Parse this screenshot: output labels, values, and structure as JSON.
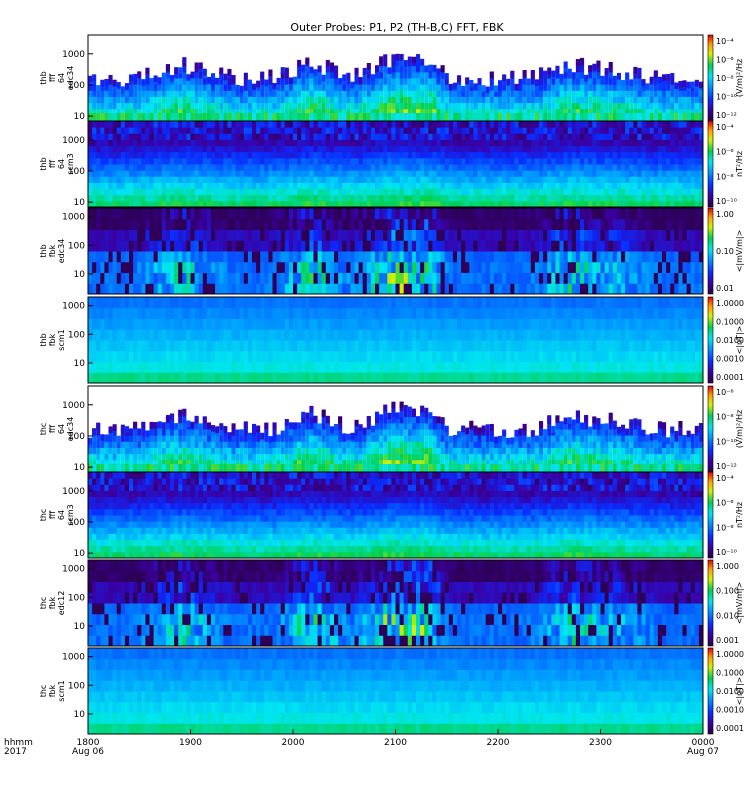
{
  "chart_data": {
    "type": "heatmap",
    "title": "Outer Probes: P1, P2 (TH-B,C) FFT, FBK",
    "x_label_rows": [
      "hhmm",
      "2017"
    ],
    "x_ticks": [
      {
        "top": "1800",
        "bottom": "Aug 06"
      },
      {
        "top": "1900",
        "bottom": ""
      },
      {
        "top": "2000",
        "bottom": ""
      },
      {
        "top": "2100",
        "bottom": ""
      },
      {
        "top": "2200",
        "bottom": ""
      },
      {
        "top": "2300",
        "bottom": ""
      },
      {
        "top": "0000",
        "bottom": "Aug 07"
      }
    ],
    "x_range_hours": [
      18,
      24
    ],
    "y_scale": "log",
    "panels": [
      {
        "label": [
          "thb",
          "fff",
          "64",
          "edc34"
        ],
        "y_ticks": [
          "1000",
          "100",
          "10"
        ],
        "y_range": [
          7,
          4000
        ],
        "cbar_label": "(V/m)²/Hz",
        "cbar_ticks": [
          "10⁻⁴",
          "10⁻⁶",
          "10⁻⁸",
          "10⁻¹⁰",
          "10⁻¹²"
        ],
        "style": "fff_e"
      },
      {
        "label": [
          "thb",
          "fff",
          "64",
          "scm3"
        ],
        "y_ticks": [
          "1000",
          "100",
          "10"
        ],
        "y_range": [
          7,
          4000
        ],
        "cbar_label": "nT²/Hz",
        "cbar_ticks": [
          "10⁻⁴",
          "10⁻⁶",
          "10⁻⁸",
          "10⁻¹⁰"
        ],
        "style": "fff_b"
      },
      {
        "label": [
          "thb",
          "fbk",
          "edc34"
        ],
        "y_ticks": [
          "1000",
          "100",
          "10"
        ],
        "y_range": [
          2,
          2000
        ],
        "cbar_label": "<|mV/m|>",
        "cbar_ticks": [
          "1.00",
          "0.10",
          "0.01"
        ],
        "style": "fbk_e"
      },
      {
        "label": [
          "thb",
          "fbk",
          "scm1"
        ],
        "y_ticks": [
          "1000",
          "100",
          "10"
        ],
        "y_range": [
          2,
          2000
        ],
        "cbar_label": "<|nT|>",
        "cbar_ticks": [
          "1.0000",
          "0.1000",
          "0.0100",
          "0.0010",
          "0.0001"
        ],
        "style": "fbk_b"
      },
      {
        "label": [
          "thc",
          "fff",
          "64",
          "edc34"
        ],
        "y_ticks": [
          "1000",
          "100",
          "10"
        ],
        "y_range": [
          7,
          4000
        ],
        "cbar_label": "(V/m)²/Hz",
        "cbar_ticks": [
          "10⁻⁶",
          "10⁻⁸",
          "10⁻¹⁰",
          "10⁻¹²"
        ],
        "style": "fff_e"
      },
      {
        "label": [
          "thc",
          "fff",
          "64",
          "scm3"
        ],
        "y_ticks": [
          "1000",
          "100",
          "10"
        ],
        "y_range": [
          7,
          4000
        ],
        "cbar_label": "nT²/Hz",
        "cbar_ticks": [
          "10⁻⁴",
          "10⁻⁶",
          "10⁻⁸",
          "10⁻¹⁰"
        ],
        "style": "fff_b"
      },
      {
        "label": [
          "thc",
          "fbk",
          "edc12"
        ],
        "y_ticks": [
          "1000",
          "100",
          "10"
        ],
        "y_range": [
          2,
          2000
        ],
        "cbar_label": "<|mV/m|>",
        "cbar_ticks": [
          "1.000",
          "0.100",
          "0.010",
          "0.001"
        ],
        "style": "fbk_e"
      },
      {
        "label": [
          "thc",
          "fbk",
          "scm1"
        ],
        "y_ticks": [
          "1000",
          "100",
          "10"
        ],
        "y_range": [
          2,
          2000
        ],
        "cbar_label": "<|nT|>",
        "cbar_ticks": [
          "1.0000",
          "0.1000",
          "0.0100",
          "0.0010",
          "0.0001"
        ],
        "style": "fbk_b"
      }
    ],
    "colorbar": "rainbow (dark violet → blue → cyan → green → yellow → red)"
  }
}
